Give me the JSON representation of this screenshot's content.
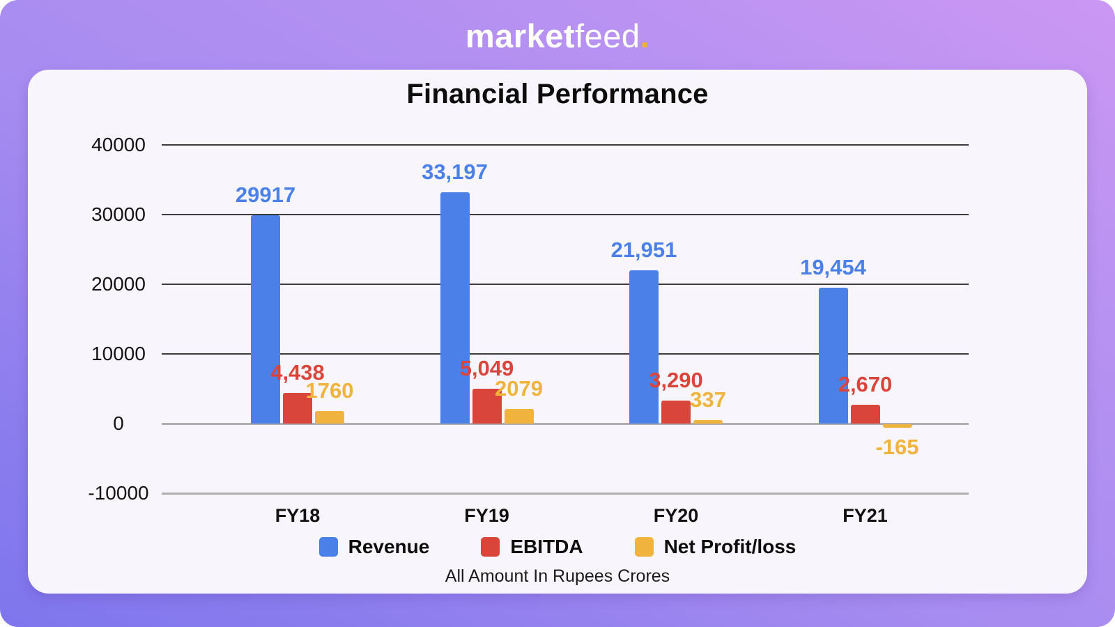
{
  "logo": {
    "market": "market",
    "feed": "feed",
    "dot": "."
  },
  "title": "Financial Performance",
  "footnote": "All Amount In Rupees Crores",
  "colors": {
    "background_gradient_start": "#cb97f3",
    "background_gradient_end": "#7e76ed",
    "card": "#f8f6fc",
    "revenue_blue": "#4a80e8",
    "ebitda_red": "#da453b",
    "netprofit_yellow": "#f0b43e",
    "logo_dot": "#eeb422",
    "grid_dark": "#3c3c3c",
    "grid_light": "#aeaeae"
  },
  "chart_data": {
    "type": "bar",
    "categories": [
      "FY18",
      "FY19",
      "FY20",
      "FY21"
    ],
    "series": [
      {
        "name": "Revenue",
        "color": "#4a80e8",
        "values": [
          29917,
          33197,
          21951,
          19454
        ],
        "labels": [
          "29917",
          "33,197",
          "21,951",
          "19,454"
        ]
      },
      {
        "name": "EBITDA",
        "color": "#da453b",
        "values": [
          4438,
          5049,
          3290,
          2670
        ],
        "labels": [
          "4,438",
          "5,049",
          "3,290",
          "2,670"
        ]
      },
      {
        "name": "Net Profit/loss",
        "color": "#f0b43e",
        "values": [
          1760,
          2079,
          337,
          -165
        ],
        "labels": [
          "1760",
          "2079",
          "337",
          "-165"
        ]
      }
    ],
    "yticks": [
      {
        "value": 40000,
        "label": "40000",
        "style": "dark"
      },
      {
        "value": 30000,
        "label": "30000",
        "style": "dark"
      },
      {
        "value": 20000,
        "label": "20000",
        "style": "dark"
      },
      {
        "value": 10000,
        "label": "10000",
        "style": "dark"
      },
      {
        "value": 0,
        "label": "0",
        "style": "light"
      },
      {
        "value": -10000,
        "label": "-10000",
        "style": "light"
      }
    ],
    "ylim": [
      -10000,
      40000
    ],
    "grid": true,
    "legend_position": "bottom",
    "xlabel": "",
    "ylabel": ""
  }
}
